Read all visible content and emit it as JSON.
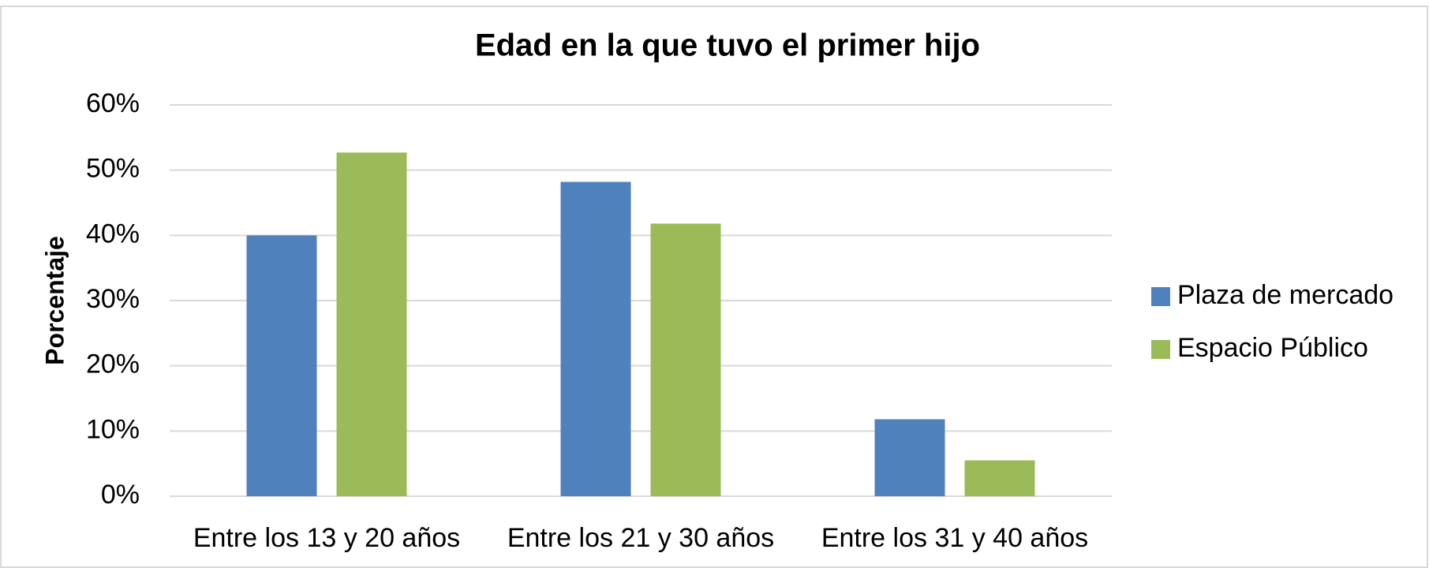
{
  "chart_data": {
    "type": "bar",
    "title": "Edad en la que tuvo el primer hijo",
    "ylabel": "Porcentaje",
    "categories": [
      "Entre los 13 y 20 años",
      "Entre los 21 y 30 años",
      "Entre los 31 y 40 años"
    ],
    "series": [
      {
        "name": "Plaza de mercado",
        "color": "#4f81bd",
        "values": [
          40,
          48.2,
          11.8
        ]
      },
      {
        "name": "Espacio Público",
        "color": "#9bbb59",
        "values": [
          52.7,
          41.8,
          5.5
        ]
      }
    ],
    "ylim": [
      0,
      60
    ],
    "yticks": [
      {
        "value": 0,
        "label": "0%"
      },
      {
        "value": 10,
        "label": "10%"
      },
      {
        "value": 20,
        "label": "20%"
      },
      {
        "value": 30,
        "label": "30%"
      },
      {
        "value": 40,
        "label": "40%"
      },
      {
        "value": 50,
        "label": "50%"
      },
      {
        "value": 60,
        "label": "60%"
      }
    ],
    "grid": true,
    "legend": "right"
  }
}
